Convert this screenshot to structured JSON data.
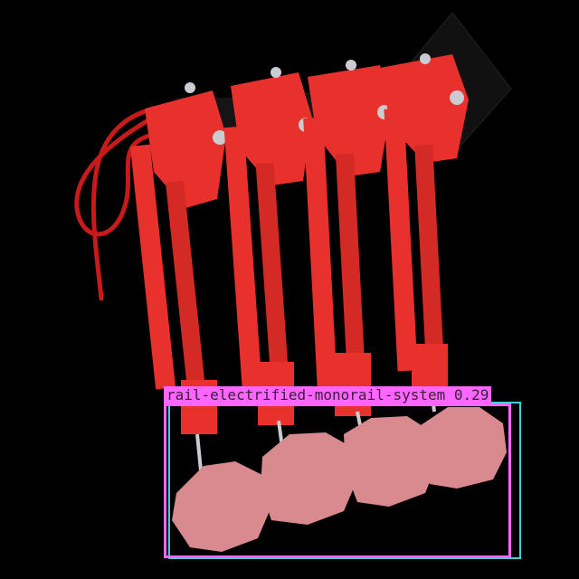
{
  "image": {
    "subject": "rail-electrified-monorail-system-collectors"
  },
  "detection": {
    "label": "rail-electrified-monorail-system",
    "confidence": "0.29",
    "box_color": "#ff66ff",
    "box_color_secondary": "#3fd0d6"
  },
  "colors": {
    "background": "#000000",
    "arm_red": "#e8302c",
    "arm_red_dark": "#b8201c",
    "shoe_pink": "#d98a8e",
    "bracket_black": "#111111",
    "bolt_metal": "#c9cdd2"
  }
}
